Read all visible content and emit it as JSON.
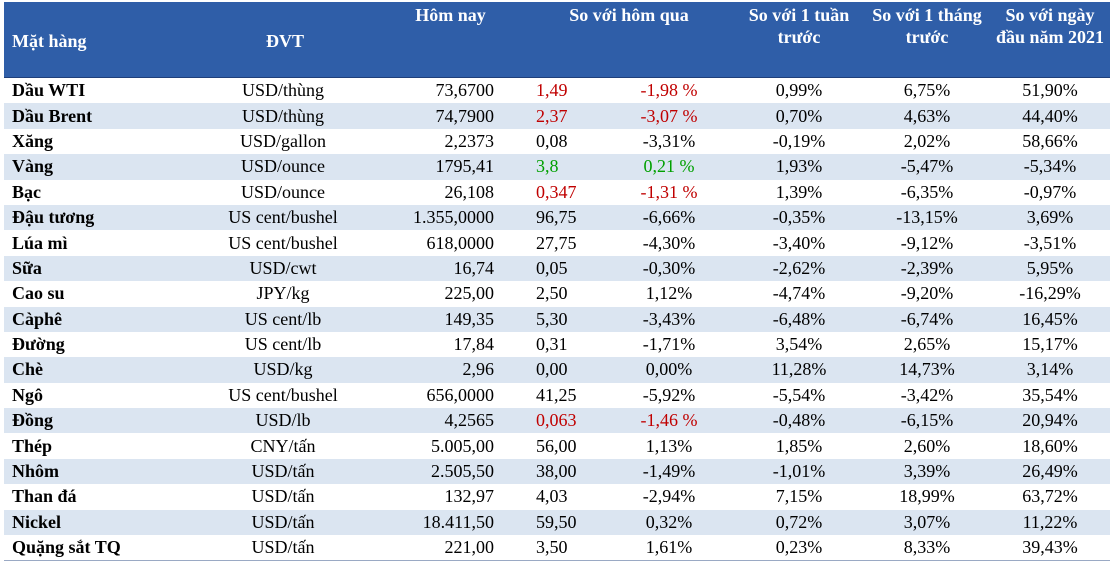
{
  "header": {
    "col_item": "Mặt hàng",
    "col_unit": "ĐVT",
    "col_today": "Hôm nay",
    "col_vs_yesterday": "So với hôm qua",
    "col_vs_week": "So với 1 tuần trước",
    "col_vs_month": "So với 1 tháng trước",
    "col_vs_year": "So với ngày đầu năm 2021"
  },
  "rows": [
    {
      "name": "Dầu WTI",
      "unit": "USD/thùng",
      "today": "73,6700",
      "chg": "1,49",
      "pct": "-1,98 %",
      "week": "0,99%",
      "month": "6,75%",
      "year": "51,90%",
      "color": "red"
    },
    {
      "name": "Dầu Brent",
      "unit": "USD/thùng",
      "today": "74,7900",
      "chg": "2,37",
      "pct": "-3,07 %",
      "week": "0,70%",
      "month": "4,63%",
      "year": "44,40%",
      "color": "red"
    },
    {
      "name": "Xăng",
      "unit": "USD/gallon",
      "today": "2,2373",
      "chg": "0,08",
      "pct": "-3,31%",
      "week": "-0,19%",
      "month": "2,02%",
      "year": "58,66%",
      "color": "black"
    },
    {
      "name": "Vàng",
      "unit": "USD/ounce",
      "today": "1795,41",
      "chg": "3,8",
      "pct": "0,21 %",
      "week": "1,93%",
      "month": "-5,47%",
      "year": "-5,34%",
      "color": "green"
    },
    {
      "name": "Bạc",
      "unit": "USD/ounce",
      "today": "26,108",
      "chg": "0,347",
      "pct": "-1,31 %",
      "week": "1,39%",
      "month": "-6,35%",
      "year": "-0,97%",
      "color": "red"
    },
    {
      "name": "Đậu tương",
      "unit": "US cent/bushel",
      "today": "1.355,0000",
      "chg": "96,75",
      "pct": "-6,66%",
      "week": "-0,35%",
      "month": "-13,15%",
      "year": "3,69%",
      "color": "black"
    },
    {
      "name": "Lúa mì",
      "unit": "US cent/bushel",
      "today": "618,0000",
      "chg": "27,75",
      "pct": "-4,30%",
      "week": "-3,40%",
      "month": "-9,12%",
      "year": "-3,51%",
      "color": "black"
    },
    {
      "name": "Sữa",
      "unit": "USD/cwt",
      "today": "16,74",
      "chg": "0,05",
      "pct": "-0,30%",
      "week": "-2,62%",
      "month": "-2,39%",
      "year": "5,95%",
      "color": "black"
    },
    {
      "name": "Cao su",
      "unit": "JPY/kg",
      "today": "225,00",
      "chg": "2,50",
      "pct": "1,12%",
      "week": "-4,74%",
      "month": "-9,20%",
      "year": "-16,29%",
      "color": "black"
    },
    {
      "name": "Càphê",
      "unit": "US cent/lb",
      "today": "149,35",
      "chg": "5,30",
      "pct": "-3,43%",
      "week": "-6,48%",
      "month": "-6,74%",
      "year": "16,45%",
      "color": "black"
    },
    {
      "name": "Đường",
      "unit": "US cent/lb",
      "today": "17,84",
      "chg": "0,31",
      "pct": "-1,71%",
      "week": "3,54%",
      "month": "2,65%",
      "year": "15,17%",
      "color": "black"
    },
    {
      "name": "Chè",
      "unit": "USD/kg",
      "today": "2,96",
      "chg": "0,00",
      "pct": "0,00%",
      "week": "11,28%",
      "month": "14,73%",
      "year": "3,14%",
      "color": "black"
    },
    {
      "name": "Ngô",
      "unit": "US cent/bushel",
      "today": "656,0000",
      "chg": "41,25",
      "pct": "-5,92%",
      "week": "-5,54%",
      "month": "-3,42%",
      "year": "35,54%",
      "color": "black"
    },
    {
      "name": "Đồng",
      "unit": "USD/lb",
      "today": "4,2565",
      "chg": "0,063",
      "pct": "-1,46 %",
      "week": "-0,48%",
      "month": "-6,15%",
      "year": "20,94%",
      "color": "red"
    },
    {
      "name": "Thép",
      "unit": "CNY/tấn",
      "today": "5.005,00",
      "chg": "56,00",
      "pct": "1,13%",
      "week": "1,85%",
      "month": "2,60%",
      "year": "18,60%",
      "color": "black"
    },
    {
      "name": "Nhôm",
      "unit": "USD/tấn",
      "today": "2.505,50",
      "chg": "38,00",
      "pct": "-1,49%",
      "week": "-1,01%",
      "month": "3,39%",
      "year": "26,49%",
      "color": "black"
    },
    {
      "name": "Than đá",
      "unit": "USD/tấn",
      "today": "132,97",
      "chg": "4,03",
      "pct": "-2,94%",
      "week": "7,15%",
      "month": "18,99%",
      "year": "63,72%",
      "color": "black"
    },
    {
      "name": "Nickel",
      "unit": "USD/tấn",
      "today": "18.411,50",
      "chg": "59,50",
      "pct": "0,32%",
      "week": "0,72%",
      "month": "3,07%",
      "year": "11,22%",
      "color": "black"
    },
    {
      "name": "Quặng sắt TQ",
      "unit": "USD/tấn",
      "today": "221,00",
      "chg": "3,50",
      "pct": "1,61%",
      "week": "0,23%",
      "month": "8,33%",
      "year": "39,43%",
      "color": "black"
    }
  ],
  "colors": {
    "header_bg": "#2f5ea8",
    "stripe": "#dbe5f1",
    "up": "#00a000",
    "down": "#c00000"
  }
}
